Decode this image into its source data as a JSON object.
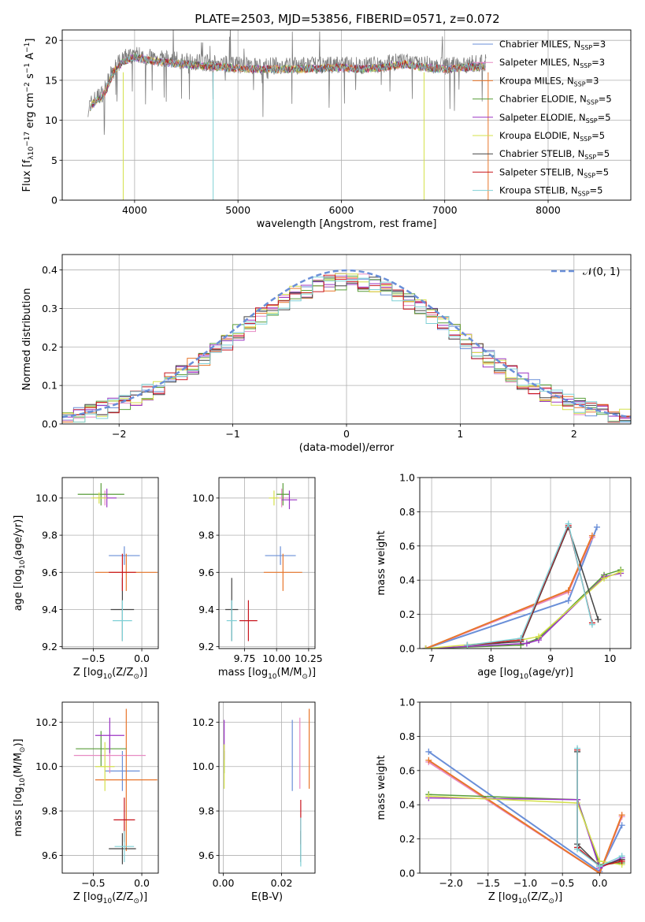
{
  "title": "PLATE=2503, MJD=53856, FIBERID=0571, z=0.072",
  "models": [
    {
      "name": "Chabrier MILES, N",
      "sub": "SSP",
      "tail": "=3",
      "color": "#6a8fd8"
    },
    {
      "name": "Salpeter MILES, N",
      "sub": "SSP",
      "tail": "=3",
      "color": "#e78ac3"
    },
    {
      "name": "Kroupa MILES, N",
      "sub": "SSP",
      "tail": "=3",
      "color": "#e8762b"
    },
    {
      "name": "Chabrier ELODIE, N",
      "sub": "SSP",
      "tail": "=5",
      "color": "#5a9e3a"
    },
    {
      "name": "Salpeter ELODIE, N",
      "sub": "SSP",
      "tail": "=5",
      "color": "#9b34c4"
    },
    {
      "name": "Kroupa ELODIE, N",
      "sub": "SSP",
      "tail": "=5",
      "color": "#d4e04a"
    },
    {
      "name": "Chabrier STELIB, N",
      "sub": "SSP",
      "tail": "=5",
      "color": "#444444"
    },
    {
      "name": "Salpeter STELIB, N",
      "sub": "SSP",
      "tail": "=5",
      "color": "#c8161e"
    },
    {
      "name": "Kroupa STELIB, N",
      "sub": "SSP",
      "tail": "=5",
      "color": "#7fd0d6"
    }
  ],
  "chart_data": [
    {
      "id": "spectrum",
      "type": "line",
      "xlabel": "wavelength [Angstrom, rest frame]",
      "ylabel_parts": [
        "Flux [f",
        "λ",
        "10",
        "−17",
        " erg cm",
        "−2",
        " s",
        "−1",
        " A",
        "−1",
        "]"
      ],
      "xlim": [
        3300,
        8800
      ],
      "ylim": [
        0,
        21.3
      ],
      "xticks": [
        4000,
        5000,
        6000,
        7000,
        8000
      ],
      "yticks": [
        0,
        5,
        10,
        15,
        20
      ],
      "data_color": "#808080",
      "data_envelope": [
        [
          3550,
          11.5
        ],
        [
          3600,
          12.5
        ],
        [
          3700,
          13.5
        ],
        [
          3800,
          16.5
        ],
        [
          3900,
          17.8
        ],
        [
          4000,
          18.3
        ],
        [
          4100,
          18.0
        ],
        [
          4200,
          17.8
        ],
        [
          4400,
          17.5
        ],
        [
          4600,
          17.3
        ],
        [
          4800,
          17.1
        ],
        [
          5000,
          16.9
        ],
        [
          5200,
          16.8
        ],
        [
          5500,
          16.8
        ],
        [
          5800,
          16.9
        ],
        [
          6000,
          17.0
        ],
        [
          6200,
          16.8
        ],
        [
          6400,
          17.0
        ],
        [
          6600,
          17.4
        ],
        [
          6800,
          17.0
        ],
        [
          7000,
          16.8
        ],
        [
          7200,
          17.0
        ],
        [
          7400,
          17.2
        ]
      ],
      "model_dips": [
        3890,
        4760,
        6800,
        7420
      ]
    },
    {
      "id": "residuals",
      "type": "step-histogram",
      "xlabel": "(data-model)/error",
      "ylabel": "Normed distribution",
      "xlim": [
        -2.5,
        2.5
      ],
      "ylim": [
        0,
        0.44
      ],
      "xticks": [
        -2,
        -1,
        0,
        1,
        2
      ],
      "yticks": [
        0.0,
        0.1,
        0.2,
        0.3,
        0.4
      ],
      "bin_width": 0.1,
      "reference_label": "𝒩(0, 1)",
      "reference_color": "#6a8fd8"
    },
    {
      "id": "z-age",
      "type": "errorbar",
      "xlabel_parts": [
        "Z [log",
        "10",
        "(Z/Z",
        "⊙",
        ")]"
      ],
      "ylabel_parts": [
        "age  [log",
        "10",
        "(age/yr)]"
      ],
      "xlim": [
        -0.82,
        0.17
      ],
      "ylim": [
        9.19,
        10.11
      ],
      "xticks": [
        -0.5,
        0.0
      ],
      "yticks": [
        9.2,
        9.4,
        9.6,
        9.8,
        10.0
      ],
      "points": [
        {
          "x": -0.18,
          "y": 9.69,
          "xerr": 0.16,
          "yerr": 0.05
        },
        {
          "x": -0.38,
          "y": 10.0,
          "xerr": 0.12,
          "yerr": 0.04
        },
        {
          "x": -0.16,
          "y": 9.6,
          "xerr": 0.32,
          "yerr": 0.1
        },
        {
          "x": -0.42,
          "y": 10.02,
          "xerr": 0.24,
          "yerr": 0.06
        },
        {
          "x": -0.36,
          "y": 10.0,
          "xerr": 0.1,
          "yerr": 0.05
        },
        {
          "x": -0.44,
          "y": 10.0,
          "xerr": 0.08,
          "yerr": 0.03
        },
        {
          "x": -0.2,
          "y": 9.4,
          "xerr": 0.12,
          "yerr": 0.17
        },
        {
          "x": -0.2,
          "y": 9.6,
          "xerr": 0.14,
          "yerr": 0.1
        },
        {
          "x": -0.2,
          "y": 9.34,
          "xerr": 0.1,
          "yerr": 0.11
        }
      ]
    },
    {
      "id": "mass-age",
      "type": "errorbar",
      "xlabel_parts": [
        "mass [log",
        "10",
        "(M/M",
        "⊙",
        ")]"
      ],
      "xlim": [
        9.55,
        10.3
      ],
      "ylim": [
        9.19,
        10.11
      ],
      "xticks": [
        9.75,
        10.0,
        10.25
      ],
      "yticks": [
        9.2,
        9.4,
        9.6,
        9.8,
        10.0
      ],
      "points": [
        {
          "x": 10.03,
          "y": 9.69,
          "xerr": 0.12,
          "yerr": 0.05
        },
        {
          "x": 10.04,
          "y": 10.0,
          "xerr": 0.05,
          "yerr": 0.05
        },
        {
          "x": 10.05,
          "y": 9.6,
          "xerr": 0.15,
          "yerr": 0.1
        },
        {
          "x": 10.05,
          "y": 10.02,
          "xerr": 0.05,
          "yerr": 0.06
        },
        {
          "x": 10.1,
          "y": 9.99,
          "xerr": 0.06,
          "yerr": 0.05
        },
        {
          "x": 9.98,
          "y": 10.0,
          "xerr": 0.04,
          "yerr": 0.04
        },
        {
          "x": 9.65,
          "y": 9.4,
          "xerr": 0.05,
          "yerr": 0.17
        },
        {
          "x": 9.78,
          "y": 9.34,
          "xerr": 0.07,
          "yerr": 0.11
        },
        {
          "x": 9.65,
          "y": 9.34,
          "xerr": 0.04,
          "yerr": 0.11
        }
      ]
    },
    {
      "id": "weights-age",
      "type": "line",
      "xlabel_parts": [
        "age  [log",
        "10",
        "(age/yr)]"
      ],
      "ylabel": "mass weight",
      "xlim": [
        6.8,
        10.35
      ],
      "ylim": [
        0,
        1.0
      ],
      "xticks": [
        7,
        8,
        9,
        10
      ],
      "yticks": [
        0.0,
        0.2,
        0.4,
        0.6,
        0.8,
        1.0
      ],
      "series": [
        {
          "model": 0,
          "x": [
            6.9,
            9.3,
            9.78
          ],
          "y": [
            0.0,
            0.28,
            0.71
          ]
        },
        {
          "model": 1,
          "x": [
            6.9,
            9.3,
            9.7
          ],
          "y": [
            0.0,
            0.33,
            0.65
          ]
        },
        {
          "model": 2,
          "x": [
            6.9,
            9.3,
            9.7
          ],
          "y": [
            0.0,
            0.34,
            0.66
          ]
        },
        {
          "model": 3,
          "x": [
            6.9,
            8.5,
            8.8,
            9.9,
            10.18
          ],
          "y": [
            0.0,
            0.02,
            0.06,
            0.43,
            0.46
          ]
        },
        {
          "model": 4,
          "x": [
            6.9,
            8.6,
            8.8,
            9.9,
            10.18
          ],
          "y": [
            0.0,
            0.03,
            0.05,
            0.42,
            0.44
          ]
        },
        {
          "model": 5,
          "x": [
            6.9,
            8.5,
            8.8,
            9.9,
            10.18
          ],
          "y": [
            0.0,
            0.05,
            0.07,
            0.41,
            0.45
          ]
        },
        {
          "model": 6,
          "x": [
            7.6,
            8.5,
            9.3,
            9.8
          ],
          "y": [
            0.02,
            0.04,
            0.71,
            0.17
          ]
        },
        {
          "model": 7,
          "x": [
            7.6,
            8.5,
            9.3,
            9.7
          ],
          "y": [
            0.02,
            0.05,
            0.72,
            0.15
          ]
        },
        {
          "model": 8,
          "x": [
            7.6,
            8.5,
            9.3,
            9.7
          ],
          "y": [
            0.02,
            0.06,
            0.73,
            0.14
          ]
        }
      ]
    },
    {
      "id": "z-mass",
      "type": "errorbar",
      "xlabel_parts": [
        "Z [log",
        "10",
        "(Z/Z",
        "⊙",
        ")]"
      ],
      "ylabel_parts": [
        "mass [log",
        "10",
        "(M/M",
        "⊙",
        ")]"
      ],
      "xlim": [
        -0.82,
        0.17
      ],
      "ylim": [
        9.52,
        10.29
      ],
      "xticks": [
        -0.5,
        0.0
      ],
      "yticks": [
        9.6,
        9.8,
        10.0,
        10.2
      ],
      "points": [
        {
          "x": -0.2,
          "y": 9.98,
          "xerr": 0.18,
          "yerr": 0.09
        },
        {
          "x": -0.33,
          "y": 10.05,
          "xerr": 0.37,
          "yerr": 0.08
        },
        {
          "x": -0.16,
          "y": 9.94,
          "xerr": 0.32,
          "yerr": 0.32
        },
        {
          "x": -0.42,
          "y": 10.08,
          "xerr": 0.26,
          "yerr": 0.08
        },
        {
          "x": -0.33,
          "y": 10.14,
          "xerr": 0.15,
          "yerr": 0.08
        },
        {
          "x": -0.38,
          "y": 10.0,
          "xerr": 0.1,
          "yerr": 0.11
        },
        {
          "x": -0.2,
          "y": 9.63,
          "xerr": 0.14,
          "yerr": 0.07
        },
        {
          "x": -0.18,
          "y": 9.76,
          "xerr": 0.11,
          "yerr": 0.1
        },
        {
          "x": -0.18,
          "y": 9.64,
          "xerr": 0.1,
          "yerr": 0.07
        }
      ]
    },
    {
      "id": "ebv-mass",
      "type": "errorbar",
      "xlabel": "E(B-V)",
      "xlim": [
        -0.0015,
        0.0315
      ],
      "ylim": [
        9.52,
        10.29
      ],
      "xticks": [
        0.0,
        0.02
      ],
      "yticks": [
        9.6,
        9.8,
        10.0,
        10.2
      ],
      "points": [
        {
          "x": 0.0237,
          "y": 10.05,
          "yerr": 0.16
        },
        {
          "x": 0.0263,
          "y": 10.06,
          "yerr": 0.16
        },
        {
          "x": 0.0295,
          "y": 10.08,
          "yerr": 0.18
        },
        {
          "x": 0.0003,
          "y": 10.02,
          "yerr": 0.05
        },
        {
          "x": 0.0003,
          "y": 10.12,
          "yerr": 0.09
        },
        {
          "x": 0.0003,
          "y": 10.0,
          "yerr": 0.1
        },
        {
          "x": 0.0266,
          "y": 9.64,
          "yerr": 0.07
        },
        {
          "x": 0.0266,
          "y": 9.75,
          "yerr": 0.1
        },
        {
          "x": 0.0266,
          "y": 9.66,
          "yerr": 0.11
        }
      ]
    },
    {
      "id": "weights-z",
      "type": "line",
      "xlabel_parts": [
        "Z [log",
        "10",
        "(Z/Z",
        "⊙",
        ")]"
      ],
      "ylabel": "mass weight",
      "xlim": [
        -2.42,
        0.42
      ],
      "ylim": [
        0,
        1.0
      ],
      "xticks": [
        -2.0,
        -1.5,
        -1.0,
        -0.5,
        0.0
      ],
      "yticks": [
        0.0,
        0.2,
        0.4,
        0.6,
        0.8,
        1.0
      ],
      "series": [
        {
          "model": 0,
          "x": [
            -2.3,
            0.0,
            0.3
          ],
          "y": [
            0.71,
            0.01,
            0.28
          ]
        },
        {
          "model": 1,
          "x": [
            -2.3,
            0.0,
            0.3
          ],
          "y": [
            0.65,
            0.0,
            0.33
          ]
        },
        {
          "model": 2,
          "x": [
            -2.3,
            0.0,
            0.3
          ],
          "y": [
            0.66,
            0.0,
            0.34
          ]
        },
        {
          "model": 3,
          "x": [
            -2.3,
            -0.3,
            0.0,
            0.3
          ],
          "y": [
            0.46,
            0.43,
            0.05,
            0.06
          ]
        },
        {
          "model": 4,
          "x": [
            -2.3,
            -0.3,
            0.0,
            0.3
          ],
          "y": [
            0.44,
            0.43,
            0.03,
            0.09
          ]
        },
        {
          "model": 5,
          "x": [
            -2.3,
            -0.3,
            0.0,
            0.3
          ],
          "y": [
            0.45,
            0.41,
            0.07,
            0.05
          ]
        },
        {
          "model": 6,
          "x": [
            -0.3,
            -0.3,
            0.0,
            0.3
          ],
          "y": [
            0.71,
            0.17,
            0.04,
            0.08
          ]
        },
        {
          "model": 7,
          "x": [
            -0.3,
            -0.3,
            0.0,
            0.3
          ],
          "y": [
            0.72,
            0.15,
            0.04,
            0.07
          ]
        },
        {
          "model": 8,
          "x": [
            -0.3,
            -0.3,
            0.0,
            0.3
          ],
          "y": [
            0.73,
            0.14,
            0.04,
            0.1
          ]
        }
      ]
    }
  ]
}
